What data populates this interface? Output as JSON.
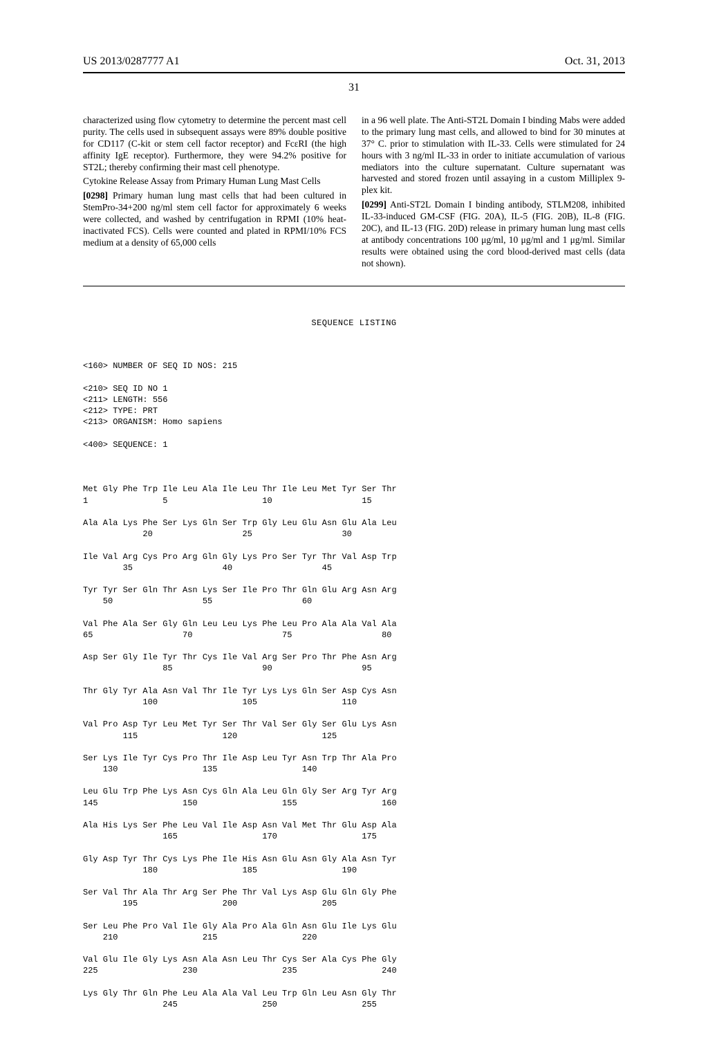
{
  "header": {
    "left": "US 2013/0287777 A1",
    "right": "Oct. 31, 2013"
  },
  "page_number": "31",
  "col1": {
    "p1": "characterized using flow cytometry to determine the percent mast cell purity. The cells used in subsequent assays were 89% double positive for CD117 (C-kit or stem cell factor receptor) and FcεRI (the high affinity IgE receptor). Furthermore, they were 94.2% positive for ST2L; thereby confirming their mast cell phenotype.",
    "subhead": "Cytokine Release Assay from Primary Human Lung Mast Cells",
    "p2_num": "[0298]",
    "p2": "   Primary human lung mast cells that had been cultured in StemPro-34+200 ng/ml stem cell factor for approximately 6 weeks were collected, and washed by centrifugation in RPMI (10% heat-inactivated FCS). Cells were counted and plated in RPMI/10% FCS medium at a density of 65,000 cells"
  },
  "col2": {
    "p1": "in a 96 well plate. The Anti-ST2L Domain I binding Mabs were added to the primary lung mast cells, and allowed to bind for 30 minutes at 37° C. prior to stimulation with IL-33. Cells were stimulated for 24 hours with 3 ng/ml IL-33 in order to initiate accumulation of various mediators into the culture supernatant. Culture supernatant was harvested and stored frozen until assaying in a custom Milliplex 9-plex kit.",
    "p2_num": "[0299]",
    "p2": "   Anti-ST2L Domain I binding antibody, STLM208, inhibited IL-33-induced GM-CSF (FIG. 20A), IL-5 (FIG. 20B), IL-8 (FIG. 20C), and IL-13 (FIG. 20D) release in primary human lung mast cells at antibody concentrations 100 μg/ml, 10 μg/ml and 1 μg/ml. Similar results were obtained using the cord blood-derived mast cells (data not shown)."
  },
  "sequence": {
    "title": "SEQUENCE LISTING",
    "meta": [
      "<160> NUMBER OF SEQ ID NOS: 215",
      "",
      "<210> SEQ ID NO 1",
      "<211> LENGTH: 556",
      "<212> TYPE: PRT",
      "<213> ORGANISM: Homo sapiens",
      "",
      "<400> SEQUENCE: 1",
      ""
    ],
    "rows": [
      {
        "aa": "Met Gly Phe Trp Ile Leu Ala Ile Leu Thr Ile Leu Met Tyr Ser Thr",
        "nums": "1               5                   10                  15"
      },
      {
        "aa": "Ala Ala Lys Phe Ser Lys Gln Ser Trp Gly Leu Glu Asn Glu Ala Leu",
        "nums": "            20                  25                  30"
      },
      {
        "aa": "Ile Val Arg Cys Pro Arg Gln Gly Lys Pro Ser Tyr Thr Val Asp Trp",
        "nums": "        35                  40                  45"
      },
      {
        "aa": "Tyr Tyr Ser Gln Thr Asn Lys Ser Ile Pro Thr Gln Glu Arg Asn Arg",
        "nums": "    50                  55                  60"
      },
      {
        "aa": "Val Phe Ala Ser Gly Gln Leu Leu Lys Phe Leu Pro Ala Ala Val Ala",
        "nums": "65                  70                  75                  80"
      },
      {
        "aa": "Asp Ser Gly Ile Tyr Thr Cys Ile Val Arg Ser Pro Thr Phe Asn Arg",
        "nums": "                85                  90                  95"
      },
      {
        "aa": "Thr Gly Tyr Ala Asn Val Thr Ile Tyr Lys Lys Gln Ser Asp Cys Asn",
        "nums": "            100                 105                 110"
      },
      {
        "aa": "Val Pro Asp Tyr Leu Met Tyr Ser Thr Val Ser Gly Ser Glu Lys Asn",
        "nums": "        115                 120                 125"
      },
      {
        "aa": "Ser Lys Ile Tyr Cys Pro Thr Ile Asp Leu Tyr Asn Trp Thr Ala Pro",
        "nums": "    130                 135                 140"
      },
      {
        "aa": "Leu Glu Trp Phe Lys Asn Cys Gln Ala Leu Gln Gly Ser Arg Tyr Arg",
        "nums": "145                 150                 155                 160"
      },
      {
        "aa": "Ala His Lys Ser Phe Leu Val Ile Asp Asn Val Met Thr Glu Asp Ala",
        "nums": "                165                 170                 175"
      },
      {
        "aa": "Gly Asp Tyr Thr Cys Lys Phe Ile His Asn Glu Asn Gly Ala Asn Tyr",
        "nums": "            180                 185                 190"
      },
      {
        "aa": "Ser Val Thr Ala Thr Arg Ser Phe Thr Val Lys Asp Glu Gln Gly Phe",
        "nums": "        195                 200                 205"
      },
      {
        "aa": "Ser Leu Phe Pro Val Ile Gly Ala Pro Ala Gln Asn Glu Ile Lys Glu",
        "nums": "    210                 215                 220"
      },
      {
        "aa": "Val Glu Ile Gly Lys Asn Ala Asn Leu Thr Cys Ser Ala Cys Phe Gly",
        "nums": "225                 230                 235                 240"
      },
      {
        "aa": "Lys Gly Thr Gln Phe Leu Ala Ala Val Leu Trp Gln Leu Asn Gly Thr",
        "nums": "                245                 250                 255"
      }
    ]
  }
}
